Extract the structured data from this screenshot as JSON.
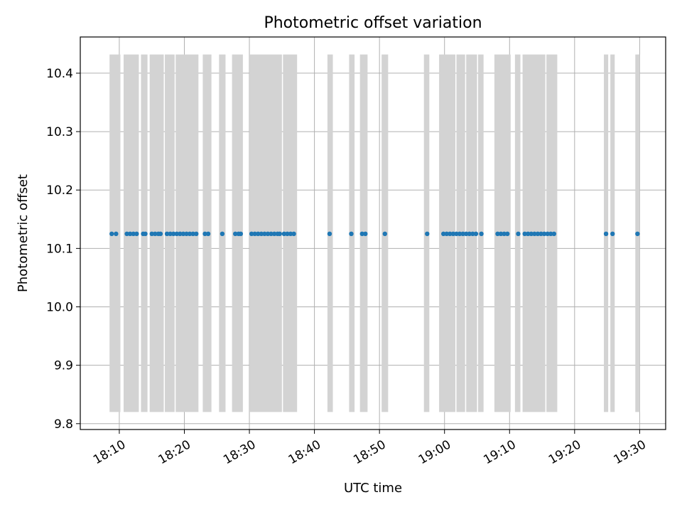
{
  "chart_data": {
    "type": "scatter",
    "title": "Photometric offset variation",
    "xlabel": "UTC time",
    "ylabel": "Photometric offset",
    "xlim": [
      "18:04:00",
      "19:34:00"
    ],
    "ylim": [
      9.79,
      10.462
    ],
    "x_tick_labels": [
      "18:10",
      "18:20",
      "18:30",
      "18:40",
      "18:50",
      "19:00",
      "19:10",
      "19:20",
      "19:30"
    ],
    "y_tick_labels": [
      "9.8",
      "9.9",
      "10.0",
      "10.1",
      "10.2",
      "10.3",
      "10.4"
    ],
    "grid": true,
    "shaded_band": {
      "color": "#d3d3d3",
      "y_range": [
        9.82,
        10.432
      ]
    },
    "marker_color": "#1f77b4",
    "points": [
      {
        "x": "18:08:50",
        "y": 10.125
      },
      {
        "x": "18:09:30",
        "y": 10.125
      },
      {
        "x": "18:11:10",
        "y": 10.125
      },
      {
        "x": "18:11:40",
        "y": 10.125
      },
      {
        "x": "18:12:10",
        "y": 10.125
      },
      {
        "x": "18:12:40",
        "y": 10.125
      },
      {
        "x": "18:13:40",
        "y": 10.125
      },
      {
        "x": "18:14:00",
        "y": 10.125
      },
      {
        "x": "18:15:00",
        "y": 10.125
      },
      {
        "x": "18:15:30",
        "y": 10.125
      },
      {
        "x": "18:16:00",
        "y": 10.125
      },
      {
        "x": "18:16:20",
        "y": 10.125
      },
      {
        "x": "18:17:20",
        "y": 10.125
      },
      {
        "x": "18:17:50",
        "y": 10.125
      },
      {
        "x": "18:18:20",
        "y": 10.125
      },
      {
        "x": "18:18:50",
        "y": 10.125
      },
      {
        "x": "18:19:20",
        "y": 10.125
      },
      {
        "x": "18:19:50",
        "y": 10.125
      },
      {
        "x": "18:20:20",
        "y": 10.125
      },
      {
        "x": "18:20:50",
        "y": 10.125
      },
      {
        "x": "18:21:20",
        "y": 10.125
      },
      {
        "x": "18:21:50",
        "y": 10.125
      },
      {
        "x": "18:23:10",
        "y": 10.125
      },
      {
        "x": "18:23:40",
        "y": 10.125
      },
      {
        "x": "18:25:50",
        "y": 10.125
      },
      {
        "x": "18:27:50",
        "y": 10.125
      },
      {
        "x": "18:28:20",
        "y": 10.125
      },
      {
        "x": "18:28:40",
        "y": 10.125
      },
      {
        "x": "18:30:20",
        "y": 10.125
      },
      {
        "x": "18:30:50",
        "y": 10.125
      },
      {
        "x": "18:31:20",
        "y": 10.125
      },
      {
        "x": "18:31:50",
        "y": 10.125
      },
      {
        "x": "18:32:20",
        "y": 10.125
      },
      {
        "x": "18:32:50",
        "y": 10.125
      },
      {
        "x": "18:33:20",
        "y": 10.125
      },
      {
        "x": "18:33:50",
        "y": 10.125
      },
      {
        "x": "18:34:20",
        "y": 10.125
      },
      {
        "x": "18:34:40",
        "y": 10.125
      },
      {
        "x": "18:35:20",
        "y": 10.125
      },
      {
        "x": "18:35:50",
        "y": 10.125
      },
      {
        "x": "18:36:20",
        "y": 10.125
      },
      {
        "x": "18:36:50",
        "y": 10.125
      },
      {
        "x": "18:42:20",
        "y": 10.125
      },
      {
        "x": "18:45:40",
        "y": 10.125
      },
      {
        "x": "18:47:20",
        "y": 10.125
      },
      {
        "x": "18:47:50",
        "y": 10.125
      },
      {
        "x": "18:50:50",
        "y": 10.125
      },
      {
        "x": "18:57:20",
        "y": 10.125
      },
      {
        "x": "18:59:50",
        "y": 10.125
      },
      {
        "x": "19:00:20",
        "y": 10.125
      },
      {
        "x": "19:00:50",
        "y": 10.125
      },
      {
        "x": "19:01:20",
        "y": 10.125
      },
      {
        "x": "19:01:50",
        "y": 10.125
      },
      {
        "x": "19:02:20",
        "y": 10.125
      },
      {
        "x": "19:02:50",
        "y": 10.125
      },
      {
        "x": "19:03:20",
        "y": 10.125
      },
      {
        "x": "19:03:50",
        "y": 10.125
      },
      {
        "x": "19:04:20",
        "y": 10.125
      },
      {
        "x": "19:04:50",
        "y": 10.125
      },
      {
        "x": "19:05:40",
        "y": 10.125
      },
      {
        "x": "19:08:10",
        "y": 10.125
      },
      {
        "x": "19:08:40",
        "y": 10.125
      },
      {
        "x": "19:09:10",
        "y": 10.125
      },
      {
        "x": "19:09:40",
        "y": 10.125
      },
      {
        "x": "19:11:20",
        "y": 10.125
      },
      {
        "x": "19:12:20",
        "y": 10.125
      },
      {
        "x": "19:12:50",
        "y": 10.125
      },
      {
        "x": "19:13:20",
        "y": 10.125
      },
      {
        "x": "19:13:50",
        "y": 10.125
      },
      {
        "x": "19:14:20",
        "y": 10.125
      },
      {
        "x": "19:14:50",
        "y": 10.125
      },
      {
        "x": "19:15:20",
        "y": 10.125
      },
      {
        "x": "19:15:50",
        "y": 10.125
      },
      {
        "x": "19:16:20",
        "y": 10.125
      },
      {
        "x": "19:16:50",
        "y": 10.125
      },
      {
        "x": "19:24:50",
        "y": 10.125
      },
      {
        "x": "19:25:50",
        "y": 10.125
      },
      {
        "x": "19:29:40",
        "y": 10.125
      }
    ],
    "bands": [
      {
        "start": "18:08:30",
        "end": "18:10:10"
      },
      {
        "start": "18:10:40",
        "end": "18:13:00"
      },
      {
        "start": "18:13:20",
        "end": "18:14:20"
      },
      {
        "start": "18:14:40",
        "end": "18:16:50"
      },
      {
        "start": "18:17:00",
        "end": "18:18:30"
      },
      {
        "start": "18:18:40",
        "end": "18:22:10"
      },
      {
        "start": "18:22:50",
        "end": "18:24:10"
      },
      {
        "start": "18:25:20",
        "end": "18:26:20"
      },
      {
        "start": "18:27:20",
        "end": "18:29:00"
      },
      {
        "start": "18:30:00",
        "end": "18:35:00"
      },
      {
        "start": "18:35:10",
        "end": "18:37:20"
      },
      {
        "start": "18:42:00",
        "end": "18:42:50"
      },
      {
        "start": "18:45:20",
        "end": "18:46:10"
      },
      {
        "start": "18:47:00",
        "end": "18:48:10"
      },
      {
        "start": "18:50:20",
        "end": "18:51:20"
      },
      {
        "start": "18:56:50",
        "end": "18:57:40"
      },
      {
        "start": "18:59:10",
        "end": "19:01:40"
      },
      {
        "start": "19:01:50",
        "end": "19:03:10"
      },
      {
        "start": "19:03:20",
        "end": "19:05:00"
      },
      {
        "start": "19:05:10",
        "end": "19:06:00"
      },
      {
        "start": "19:07:40",
        "end": "19:10:10"
      },
      {
        "start": "19:10:50",
        "end": "19:11:40"
      },
      {
        "start": "19:12:00",
        "end": "19:15:30"
      },
      {
        "start": "19:15:40",
        "end": "19:17:20"
      },
      {
        "start": "19:24:30",
        "end": "19:25:10"
      },
      {
        "start": "19:25:30",
        "end": "19:26:10"
      },
      {
        "start": "19:29:20",
        "end": "19:30:00"
      }
    ]
  }
}
